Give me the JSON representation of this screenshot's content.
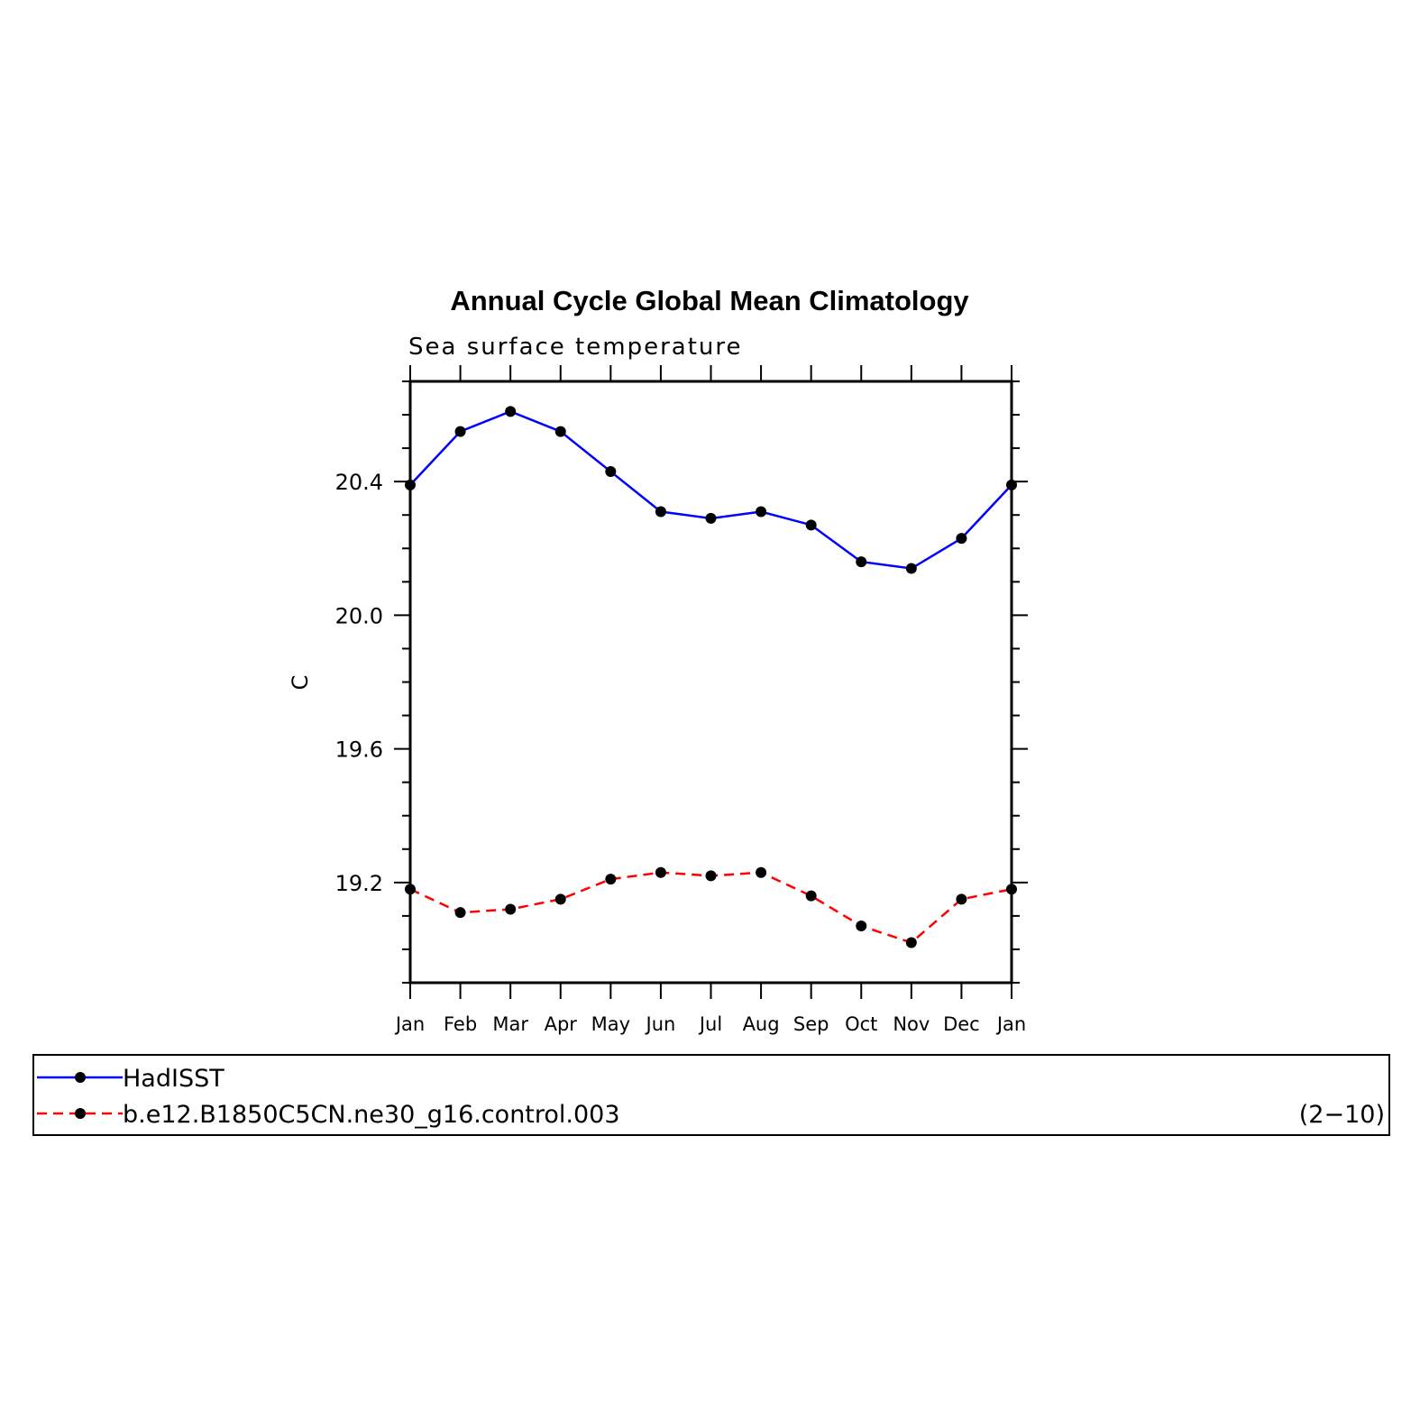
{
  "chart_data": {
    "type": "line",
    "title": "Annual Cycle Global Mean Climatology",
    "subtitle": "Sea surface temperature",
    "ylabel": "C",
    "xlabel": "",
    "categories": [
      "Jan",
      "Feb",
      "Mar",
      "Apr",
      "May",
      "Jun",
      "Jul",
      "Aug",
      "Sep",
      "Oct",
      "Nov",
      "Dec",
      "Jan"
    ],
    "ylim": [
      18.9,
      20.7
    ],
    "yticks": [
      "20.4",
      "20.0",
      "19.6",
      "19.2"
    ],
    "grid": false,
    "legend_placement": "bottom",
    "legend_note": "(2−10)",
    "series": [
      {
        "name": "HadISST",
        "color": "#0000ff",
        "dash": "solid",
        "values": [
          20.39,
          20.55,
          20.61,
          20.55,
          20.43,
          20.31,
          20.29,
          20.31,
          20.27,
          20.16,
          20.14,
          20.23,
          20.39
        ]
      },
      {
        "name": "b.e12.B1850C5CN.ne30_g16.control.003",
        "color": "#ff0000",
        "dash": "dashed",
        "values": [
          19.18,
          19.11,
          19.12,
          19.15,
          19.21,
          19.23,
          19.22,
          19.23,
          19.16,
          19.07,
          19.02,
          19.15,
          19.18
        ]
      }
    ]
  }
}
